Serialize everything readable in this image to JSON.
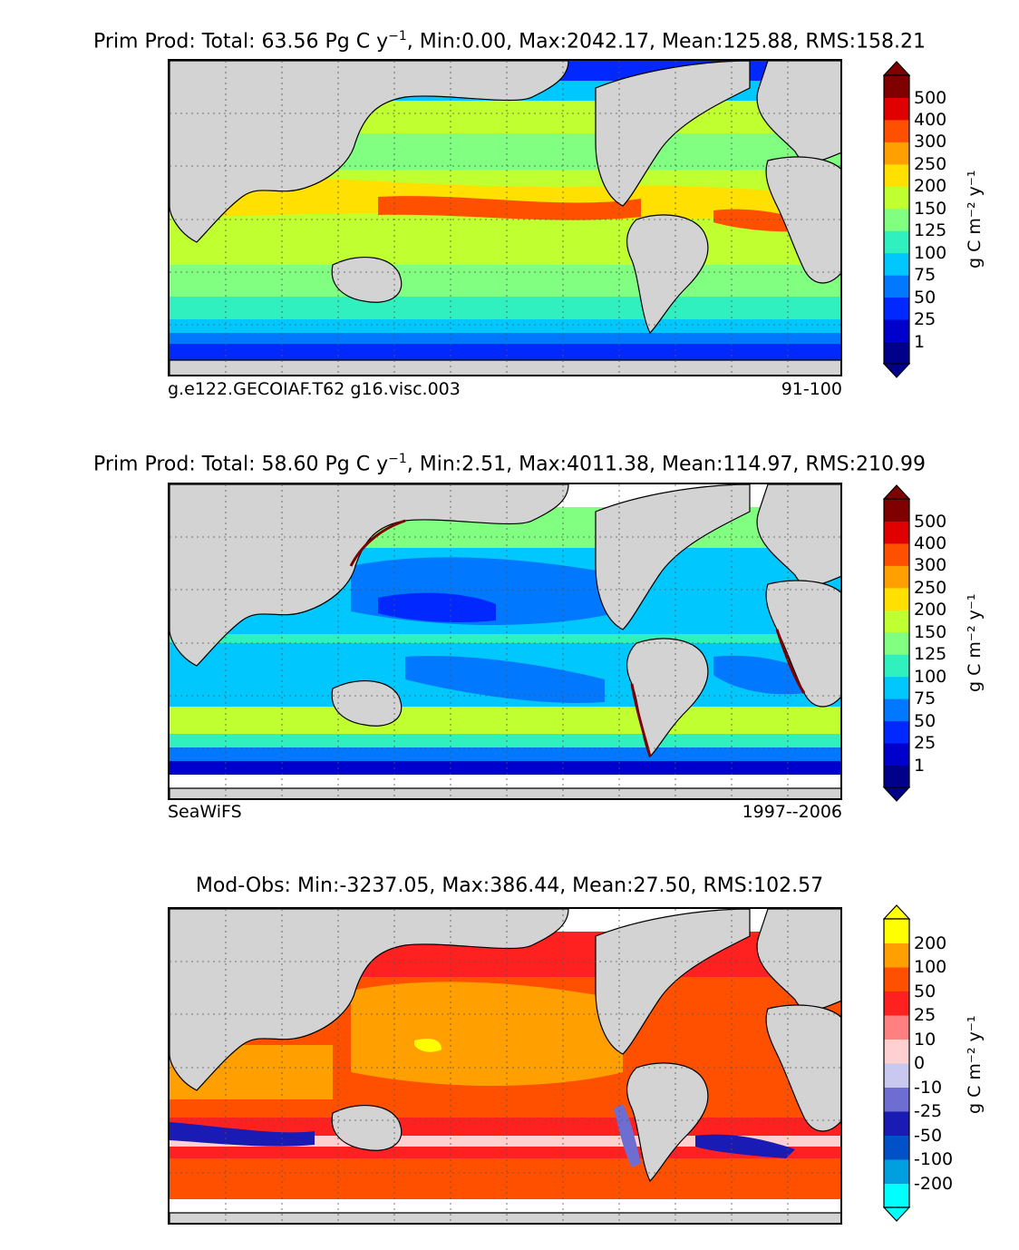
{
  "panels": [
    {
      "title_main": "Prim Prod: Total: 63.56 Pg C y",
      "title_sup": "−1",
      "title_rest": ", Min:0.00, Max:2042.17, Mean:125.88, RMS:158.21",
      "caption_left": "g.e122.GECOIAF.T62 g16.visc.003",
      "caption_right": "91-100",
      "colorbar_unit": "g C m⁻² y⁻¹",
      "colorbar_ticks": [
        "1",
        "25",
        "50",
        "75",
        "100",
        "125",
        "150",
        "200",
        "250",
        "300",
        "400",
        "500"
      ],
      "colorbar_colors": [
        "#00008b",
        "#0000cd",
        "#0028ff",
        "#0078ff",
        "#00c8ff",
        "#30f0c0",
        "#80ff80",
        "#c0ff30",
        "#ffe000",
        "#ffa000",
        "#ff5000",
        "#e00000",
        "#800000"
      ]
    },
    {
      "title_main": "Prim Prod: Total: 58.60 Pg C y",
      "title_sup": "−1",
      "title_rest": ", Min:2.51, Max:4011.38, Mean:114.97, RMS:210.99",
      "caption_left": "SeaWiFS",
      "caption_right": "1997--2006",
      "colorbar_unit": "g C m⁻² y⁻¹",
      "colorbar_ticks": [
        "1",
        "25",
        "50",
        "75",
        "100",
        "125",
        "150",
        "200",
        "250",
        "300",
        "400",
        "500"
      ],
      "colorbar_colors": [
        "#00008b",
        "#0000cd",
        "#0028ff",
        "#0078ff",
        "#00c8ff",
        "#30f0c0",
        "#80ff80",
        "#c0ff30",
        "#ffe000",
        "#ffa000",
        "#ff5000",
        "#e00000",
        "#800000"
      ]
    },
    {
      "title_main": "Mod-Obs: Min:-3237.05, Max:386.44, Mean:27.50, RMS:102.57",
      "title_sup": "",
      "title_rest": "",
      "caption_left": "",
      "caption_right": "",
      "colorbar_unit": "g C m⁻² y⁻¹",
      "colorbar_ticks": [
        "-200",
        "-100",
        "-50",
        "-25",
        "-10",
        "0",
        "10",
        "25",
        "50",
        "100",
        "200"
      ],
      "colorbar_colors": [
        "#00ffff",
        "#00a0e0",
        "#0050c8",
        "#1a1ab4",
        "#6e6ed2",
        "#c8c8f0",
        "#ffd0d0",
        "#ff8080",
        "#ff2020",
        "#ff5000",
        "#ffa000",
        "#ffff00"
      ]
    }
  ],
  "colors": {
    "land": "#d3d3d3",
    "no_data": "#ffffff"
  }
}
